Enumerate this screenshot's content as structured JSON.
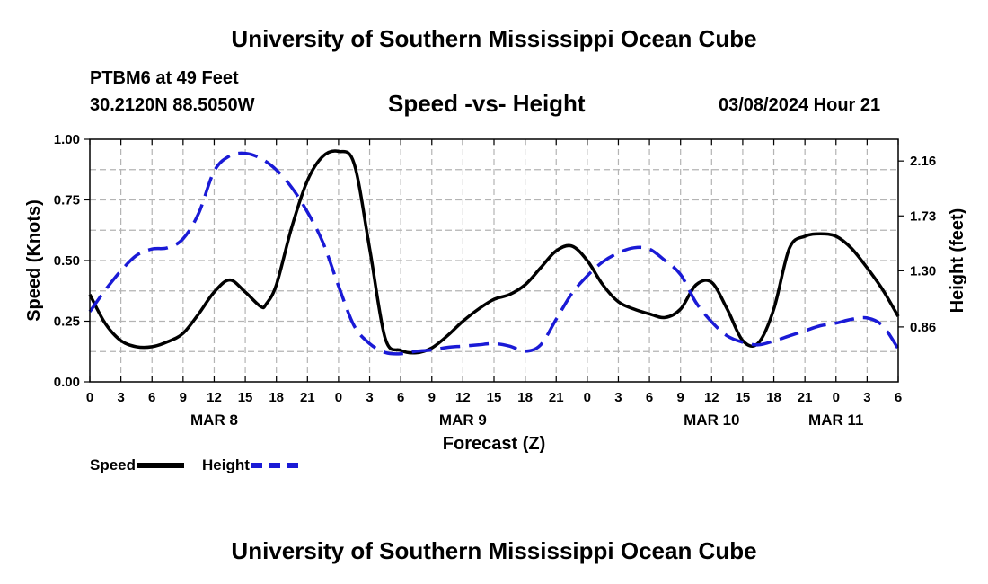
{
  "header": {
    "title": "University of Southern Mississippi Ocean Cube",
    "station": "PTBM6 at 49 Feet",
    "coords": "30.2120N  88.5050W",
    "subtitle": "Speed -vs- Height",
    "datetime": "03/08/2024 Hour 21"
  },
  "footer": {
    "title": "University of Southern Mississippi Ocean Cube"
  },
  "legend": {
    "speed_label": "Speed",
    "height_label": "Height"
  },
  "colors": {
    "speed": "#000000",
    "height": "#1a1ad6",
    "grid": "#b4b4b4"
  },
  "chart_data": {
    "type": "line",
    "title": "Speed -vs- Height",
    "xlabel": "Forecast (Z)",
    "ylabel": "Speed (Knots)",
    "y2label": "Height (feet)",
    "x_range_hours": [
      0,
      78
    ],
    "ylim": [
      0,
      1
    ],
    "y2lim": [
      0.43,
      2.33
    ],
    "y_ticks": [
      "0.00",
      "0.25",
      "0.50",
      "0.75",
      "1.00"
    ],
    "y2_ticks": [
      0.86,
      1.3,
      1.73,
      2.16
    ],
    "x_tick_labels": [
      "0",
      "3",
      "6",
      "9",
      "12",
      "15",
      "18",
      "21",
      "0",
      "3",
      "6",
      "9",
      "12",
      "15",
      "18",
      "21",
      "0",
      "3",
      "6",
      "9",
      "12",
      "15",
      "18",
      "21",
      "0",
      "3",
      "6"
    ],
    "date_labels": [
      {
        "label": "MAR 8",
        "hour": 12
      },
      {
        "label": "MAR 9",
        "hour": 36
      },
      {
        "label": "MAR 10",
        "hour": 60
      },
      {
        "label": "MAR 11",
        "hour": 72
      }
    ],
    "grid": true,
    "series": [
      {
        "name": "Speed",
        "axis": "left",
        "style": "solid",
        "x": [
          0,
          1.5,
          3,
          4.5,
          6,
          7.5,
          9,
          10.5,
          12,
          13.5,
          15,
          16.5,
          17,
          18,
          19.5,
          21,
          22.5,
          24,
          25.5,
          27,
          28.5,
          30,
          31.5,
          33,
          34.5,
          36,
          37.5,
          39,
          40.5,
          42,
          43.5,
          45,
          46.5,
          48,
          49.5,
          51,
          52.5,
          54,
          55.5,
          57,
          58.5,
          60,
          61.5,
          63,
          64.5,
          66,
          67.5,
          69,
          70.5,
          72,
          73.5,
          75,
          76.5,
          78
        ],
        "values": [
          0.36,
          0.24,
          0.17,
          0.145,
          0.145,
          0.165,
          0.2,
          0.28,
          0.37,
          0.42,
          0.37,
          0.31,
          0.32,
          0.4,
          0.64,
          0.83,
          0.93,
          0.95,
          0.9,
          0.55,
          0.18,
          0.13,
          0.12,
          0.14,
          0.19,
          0.25,
          0.3,
          0.34,
          0.36,
          0.4,
          0.47,
          0.54,
          0.56,
          0.5,
          0.4,
          0.33,
          0.3,
          0.28,
          0.265,
          0.3,
          0.4,
          0.41,
          0.3,
          0.17,
          0.16,
          0.3,
          0.55,
          0.6,
          0.61,
          0.6,
          0.55,
          0.47,
          0.38,
          0.27
        ]
      },
      {
        "name": "Height",
        "axis": "right",
        "style": "dashed",
        "x": [
          0,
          1.5,
          3,
          4.5,
          6,
          7.5,
          9,
          10.5,
          12,
          13.5,
          15,
          16.5,
          18,
          19.5,
          21,
          22.5,
          24,
          25.5,
          27,
          28.5,
          30,
          31.5,
          33,
          34.5,
          36,
          37.5,
          39,
          40.5,
          42,
          43.5,
          45,
          46.5,
          48,
          49.5,
          51,
          52.5,
          54,
          55.5,
          57,
          58.5,
          60,
          61.5,
          63,
          64.5,
          66,
          67.5,
          69,
          70.5,
          72,
          73.5,
          75,
          76.5,
          78
        ],
        "values": [
          0.98,
          1.15,
          1.3,
          1.42,
          1.47,
          1.48,
          1.55,
          1.75,
          2.08,
          2.2,
          2.22,
          2.18,
          2.09,
          1.95,
          1.76,
          1.52,
          1.18,
          0.87,
          0.73,
          0.66,
          0.65,
          0.67,
          0.68,
          0.7,
          0.71,
          0.72,
          0.73,
          0.71,
          0.67,
          0.72,
          0.92,
          1.12,
          1.26,
          1.37,
          1.44,
          1.48,
          1.47,
          1.38,
          1.27,
          1.05,
          0.9,
          0.79,
          0.74,
          0.72,
          0.75,
          0.79,
          0.83,
          0.87,
          0.89,
          0.92,
          0.93,
          0.87,
          0.69
        ]
      }
    ]
  }
}
